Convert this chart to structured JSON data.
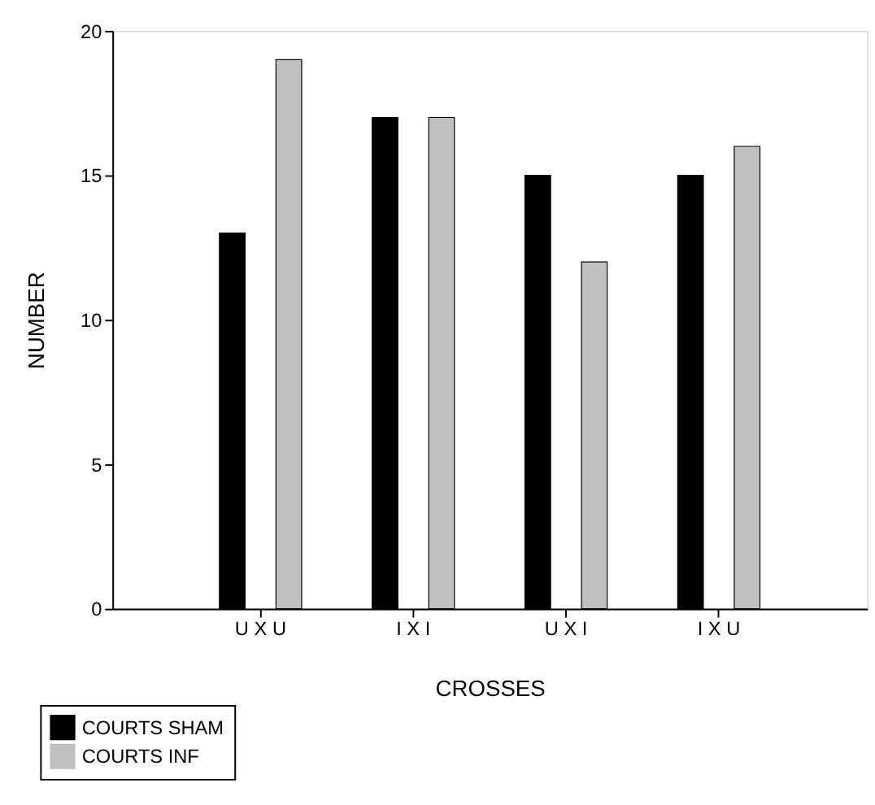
{
  "chart_data": {
    "type": "bar",
    "xlabel": "CROSSES",
    "ylabel": "NUMBER",
    "categories": [
      "U X U",
      "I X I",
      "U X I",
      "I X U"
    ],
    "series": [
      {
        "name": "COURTS SHAM",
        "color": "#000000",
        "values": [
          13,
          17,
          15,
          15
        ]
      },
      {
        "name": "COURTS INF",
        "color": "#c0c0c0",
        "values": [
          19,
          17,
          12,
          16
        ]
      }
    ],
    "ylim": [
      0,
      20
    ],
    "yticks": [
      0,
      5,
      10,
      15,
      20
    ],
    "grid": false,
    "legend": "bottom left"
  }
}
